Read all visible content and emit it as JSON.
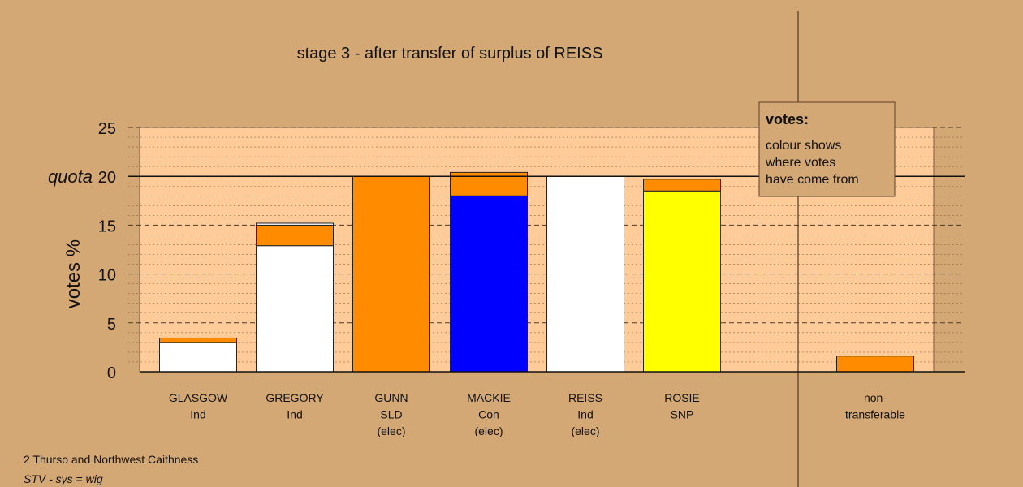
{
  "chart_data": {
    "type": "bar",
    "title": "stage 3 - after transfer of surplus of REISS",
    "ylabel": "votes %",
    "ylim": [
      0,
      25
    ],
    "yticks": [
      0,
      5,
      10,
      15,
      20,
      25
    ],
    "quota_label": "quota",
    "quota_value": 20,
    "grid": "dashed horizontal",
    "categories": [
      {
        "lines": [
          "GLASGOW",
          "Ind"
        ],
        "segments": [
          {
            "value": 3.0,
            "color": "#FFFFFF"
          },
          {
            "value": 0.45,
            "color": "#FF8C00"
          }
        ]
      },
      {
        "lines": [
          "GREGORY",
          "Ind"
        ],
        "segments": [
          {
            "value": 12.9,
            "color": "#FFFFFF"
          },
          {
            "value": 2.1,
            "color": "#FF8C00"
          },
          {
            "value": 0.2,
            "color": "#FFFFFF"
          }
        ]
      },
      {
        "lines": [
          "GUNN",
          "SLD",
          "(elec)"
        ],
        "segments": [
          {
            "value": 20.0,
            "color": "#FF8C00"
          }
        ]
      },
      {
        "lines": [
          "MACKIE",
          "Con",
          "(elec)"
        ],
        "segments": [
          {
            "value": 18.0,
            "color": "#0000FF"
          },
          {
            "value": 2.4,
            "color": "#FF8C00"
          }
        ]
      },
      {
        "lines": [
          "REISS",
          "Ind",
          "(elec)"
        ],
        "segments": [
          {
            "value": 20.0,
            "color": "#FFFFFF"
          }
        ]
      },
      {
        "lines": [
          "ROSIE",
          "SNP"
        ],
        "segments": [
          {
            "value": 18.5,
            "color": "#FFFF00"
          },
          {
            "value": 1.2,
            "color": "#FF8C00"
          }
        ]
      }
    ],
    "nontransferable": {
      "lines": [
        "non-",
        "transferable"
      ],
      "segments": [
        {
          "value": 1.6,
          "color": "#FF8C00"
        }
      ]
    },
    "legend": {
      "title": "votes:",
      "lines": [
        "colour shows",
        "where votes",
        "have come from"
      ],
      "placement": "top-right"
    },
    "colors": {
      "background": "#D4A874",
      "plot_area": "#FFCC99",
      "orange": "#FF8C00"
    }
  },
  "footer": {
    "constituency": "2 Thurso and Northwest Caithness",
    "system": "STV - sys = wig"
  }
}
